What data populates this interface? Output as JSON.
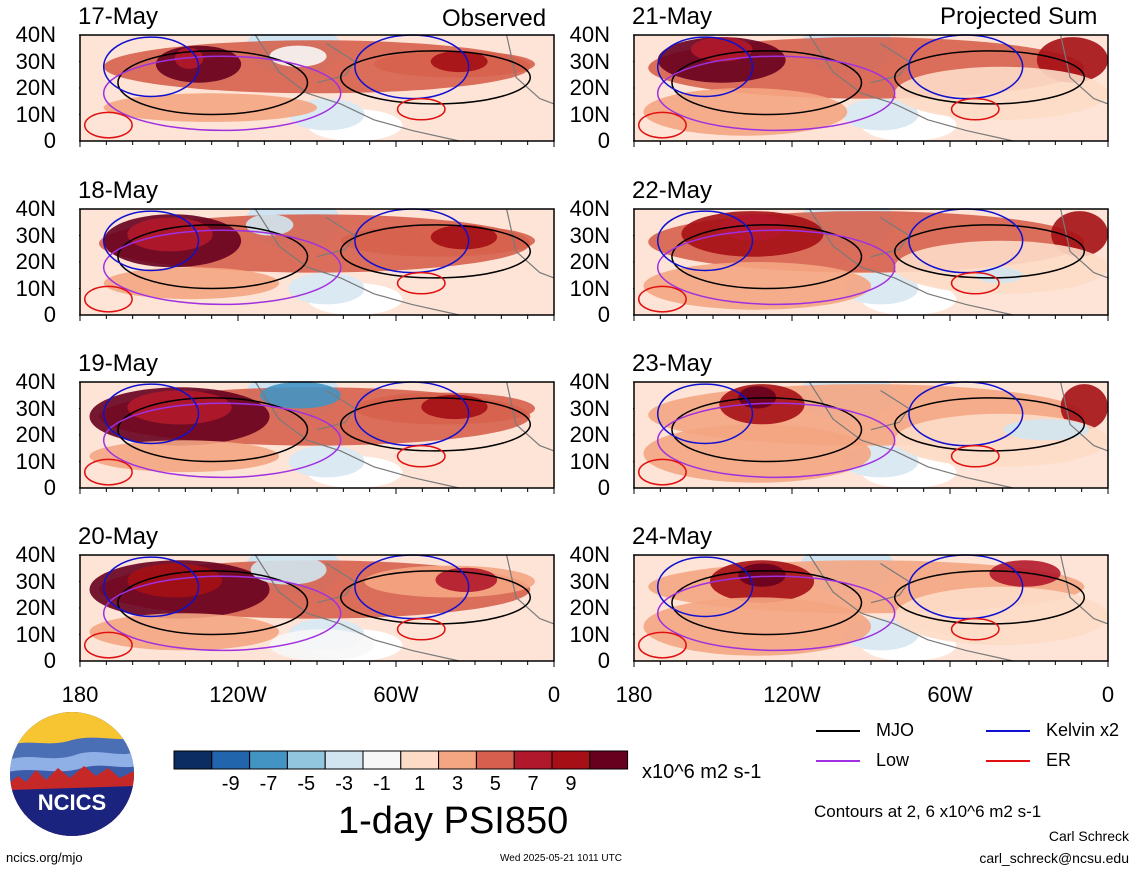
{
  "headers": {
    "observed": "Observed",
    "projected": "Projected Sum"
  },
  "panels": [
    {
      "date": "17-May",
      "kind": "observed"
    },
    {
      "date": "18-May",
      "kind": "observed"
    },
    {
      "date": "19-May",
      "kind": "observed"
    },
    {
      "date": "20-May",
      "kind": "observed"
    },
    {
      "date": "21-May",
      "kind": "projected"
    },
    {
      "date": "22-May",
      "kind": "projected"
    },
    {
      "date": "23-May",
      "kind": "projected"
    },
    {
      "date": "24-May",
      "kind": "projected"
    }
  ],
  "axes": {
    "lat_labels": [
      "40N",
      "30N",
      "20N",
      "10N",
      "0"
    ],
    "lon_labels": [
      "180",
      "120W",
      "60W",
      "0"
    ]
  },
  "colorbar": {
    "colors": [
      "#0b2d62",
      "#2166ac",
      "#4393c3",
      "#92c5de",
      "#d1e5f0",
      "#f7f7f7",
      "#fddbc7",
      "#f4a582",
      "#d6604d",
      "#b2182b",
      "#a50f15",
      "#67001f"
    ],
    "labels": [
      "-9",
      "-7",
      "-5",
      "-3",
      "-1",
      "1",
      "3",
      "5",
      "7",
      "9"
    ],
    "units": "x10^6 m2 s-1",
    "title": "1-day PSI850"
  },
  "legend": {
    "items": [
      {
        "label": "MJO",
        "color": "#000000"
      },
      {
        "label": "Kelvin x2",
        "color": "#1010d0"
      },
      {
        "label": "Low",
        "color": "#a030e0"
      },
      {
        "label": "ER",
        "color": "#e01010"
      }
    ],
    "contours_note": "Contours at 2, 6 x10^6 m2 s-1"
  },
  "logo": {
    "text": "NCICS"
  },
  "credits": {
    "site": "ncics.org/mjo",
    "timestamp": "Wed 2025-05-21 1011 UTC",
    "author": "Carl Schreck",
    "email": "carl_schreck@ncsu.edu"
  }
}
